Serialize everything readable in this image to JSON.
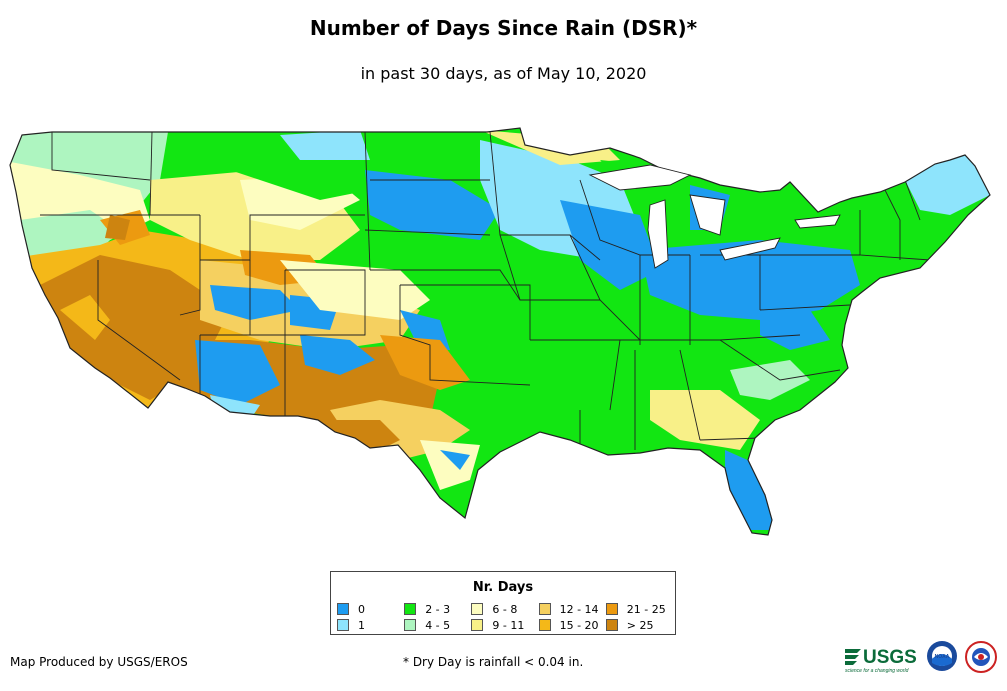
{
  "title": "Number of Days Since Rain (DSR)*",
  "subtitle": "in past 30 days, as of May 10, 2020",
  "legend": {
    "title": "Nr. Days",
    "items": [
      {
        "label": "0",
        "color": "#1e9cf0"
      },
      {
        "label": "2 - 3",
        "color": "#12e612"
      },
      {
        "label": "6 - 8",
        "color": "#fdfdc0"
      },
      {
        "label": "12 - 14",
        "color": "#f5d060"
      },
      {
        "label": "21 - 25",
        "color": "#ec9a10"
      },
      {
        "label": "1",
        "color": "#8ee4fc"
      },
      {
        "label": "4 - 5",
        "color": "#aef5c0"
      },
      {
        "label": "9 - 11",
        "color": "#f8f088"
      },
      {
        "label": "15 - 20",
        "color": "#f4b818"
      },
      {
        "label": "> 25",
        "color": "#cd8410"
      }
    ]
  },
  "footer": {
    "credit": "Map Produced by USGS/EROS",
    "note": "* Dry Day is rainfall < 0.04 in."
  },
  "logos": {
    "usgs": "USGS",
    "usgs_tagline": "science for a changing world",
    "noaa": "NOAA"
  }
}
